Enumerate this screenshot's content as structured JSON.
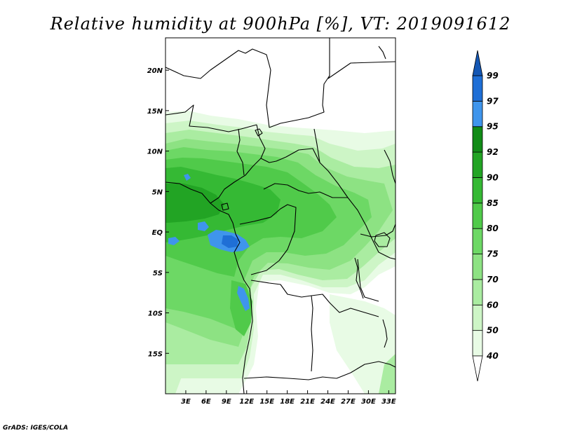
{
  "title": "Relative humidity at 900hPa [%], VT: 2019091612",
  "credit": "GrADS: IGES/COLA",
  "map": {
    "lon_range": [
      0,
      34
    ],
    "lat_range": [
      -20,
      24
    ],
    "lon_ticks": [
      {
        "value": 3,
        "label": "3E"
      },
      {
        "value": 6,
        "label": "6E"
      },
      {
        "value": 9,
        "label": "9E"
      },
      {
        "value": 12,
        "label": "12E"
      },
      {
        "value": 15,
        "label": "15E"
      },
      {
        "value": 18,
        "label": "18E"
      },
      {
        "value": 21,
        "label": "21E"
      },
      {
        "value": 24,
        "label": "24E"
      },
      {
        "value": 27,
        "label": "27E"
      },
      {
        "value": 30,
        "label": "30E"
      },
      {
        "value": 33,
        "label": "33E"
      }
    ],
    "lat_ticks": [
      {
        "value": 20,
        "label": "20N"
      },
      {
        "value": 15,
        "label": "15N"
      },
      {
        "value": 10,
        "label": "10N"
      },
      {
        "value": 5,
        "label": "5N"
      },
      {
        "value": 0,
        "label": "EQ"
      },
      {
        "value": -5,
        "label": "5S"
      },
      {
        "value": -10,
        "label": "10S"
      },
      {
        "value": -15,
        "label": "15S"
      }
    ]
  },
  "colorbar": {
    "levels": [
      "40",
      "50",
      "60",
      "70",
      "75",
      "80",
      "85",
      "90",
      "92",
      "95",
      "97",
      "99"
    ],
    "colors": [
      "#ffffff",
      "#e8fbe5",
      "#cdf5c6",
      "#aaeca1",
      "#8de283",
      "#6dd865",
      "#50ca4a",
      "#35b934",
      "#22a424",
      "#118c17",
      "#3f95ec",
      "#1f6fd6",
      "#1457b4"
    ]
  },
  "fields": {
    "colors": {
      "rh50": "#e8fbe5",
      "rh60": "#cdf5c6",
      "rh70": "#aaeca1",
      "rh75": "#8de283",
      "rh80": "#6dd865",
      "rh85": "#50ca4a",
      "rh90": "#35b934",
      "rh92": "#22a424",
      "rh97": "#3f95ec",
      "rh99": "#1f6fd6"
    }
  }
}
